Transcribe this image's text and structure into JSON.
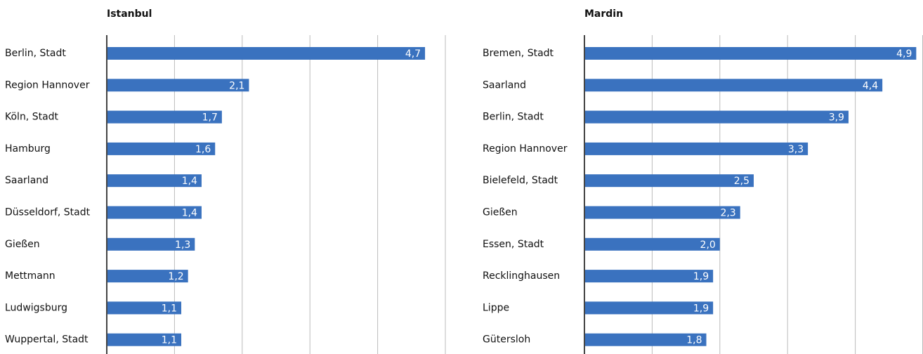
{
  "chart_data": [
    {
      "type": "bar",
      "orientation": "horizontal",
      "title": "Istanbul",
      "categories": [
        "Berlin, Stadt",
        "Region Hannover",
        "Köln, Stadt",
        "Hamburg",
        "Saarland",
        "Düsseldorf, Stadt",
        "Gießen",
        "Mettmann",
        "Ludwigsburg",
        "Wuppertal, Stadt"
      ],
      "values": [
        4.7,
        2.1,
        1.7,
        1.6,
        1.4,
        1.4,
        1.3,
        1.2,
        1.1,
        1.1
      ],
      "value_labels": [
        "4,7",
        "2,1",
        "1,7",
        "1,6",
        "1,4",
        "1,4",
        "1,3",
        "1,2",
        "1,1",
        "1,1"
      ],
      "color": "#3a72bf",
      "xlim": [
        0,
        5
      ],
      "xticks": [
        1,
        2,
        3,
        4,
        5
      ],
      "grid": true
    },
    {
      "type": "bar",
      "orientation": "horizontal",
      "title": "Mardin",
      "categories": [
        "Bremen, Stadt",
        "Saarland",
        "Berlin, Stadt",
        "Region Hannover",
        "Bielefeld, Stadt",
        "Gießen",
        "Essen, Stadt",
        "Recklinghausen",
        "Lippe",
        "Gütersloh"
      ],
      "values": [
        4.9,
        4.4,
        3.9,
        3.3,
        2.5,
        2.3,
        2.0,
        1.9,
        1.9,
        1.8
      ],
      "value_labels": [
        "4,9",
        "4,4",
        "3,9",
        "3,3",
        "2,5",
        "2,3",
        "2,0",
        "1,9",
        "1,9",
        "1,8"
      ],
      "color": "#3a72bf",
      "xlim": [
        0,
        5
      ],
      "xticks": [
        1,
        2,
        3,
        4,
        5
      ],
      "grid": true
    }
  ]
}
